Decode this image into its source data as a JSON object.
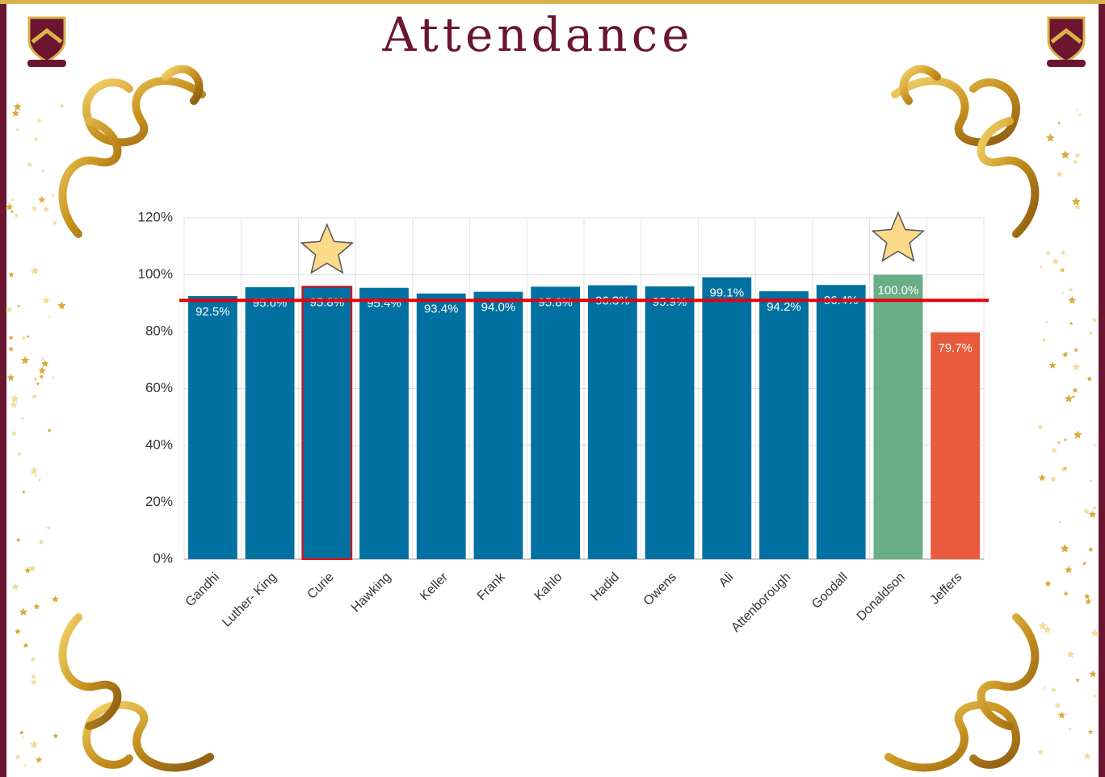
{
  "chart_data": {
    "type": "bar",
    "title": "Attendance",
    "categories": [
      "Gandhi",
      "Luther- King",
      "Curie",
      "Hawking",
      "Keller",
      "Frank",
      "Kahlo",
      "Hadid",
      "Owens",
      "Ali",
      "Attenborough",
      "Goodall",
      "Donaldson",
      "Jeffers"
    ],
    "values": [
      92.5,
      95.6,
      95.8,
      95.4,
      93.4,
      94.0,
      95.8,
      96.3,
      95.9,
      99.1,
      94.2,
      96.4,
      100.0,
      79.7
    ],
    "value_labels": [
      "92.5%",
      "95.6%",
      "95.8%",
      "95.4%",
      "93.4%",
      "94.0%",
      "95.8%",
      "96.3%",
      "95.9%",
      "99.1%",
      "94.2%",
      "96.4%",
      "100.0%",
      "79.7%"
    ],
    "colors": [
      "#0071a1",
      "#0071a1",
      "#0071a1",
      "#0071a1",
      "#0071a1",
      "#0071a1",
      "#0071a1",
      "#0071a1",
      "#0071a1",
      "#0071a1",
      "#0071a1",
      "#0071a1",
      "#69ae87",
      "#e85b3c"
    ],
    "outlined": [
      2
    ],
    "starred": [
      2,
      12
    ],
    "ylim": [
      0,
      120
    ],
    "yticks": [
      {
        "value": 0,
        "label": "0%"
      },
      {
        "value": 20,
        "label": "20%"
      },
      {
        "value": 40,
        "label": "40%"
      },
      {
        "value": 60,
        "label": "60%"
      },
      {
        "value": 80,
        "label": "80%"
      },
      {
        "value": 100,
        "label": "100%"
      },
      {
        "value": 120,
        "label": "120%"
      }
    ],
    "grid": true,
    "reference_line": {
      "value": 91,
      "color": "#e8000b"
    }
  }
}
